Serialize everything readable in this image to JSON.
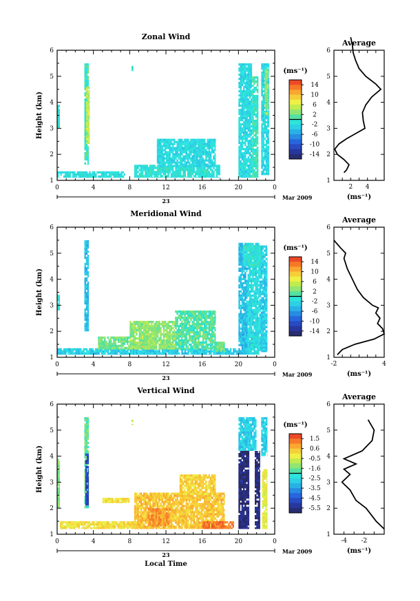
{
  "figure": {
    "month_label": "Mar 2009",
    "day_label": "23",
    "local_time_label": "Local Time",
    "average_title": "Average",
    "unit_label": "(ms⁻¹)",
    "y_label": "Height (km)",
    "time_ticks": [
      "0",
      "4",
      "8",
      "12",
      "16",
      "20",
      "0"
    ]
  },
  "chart_data": [
    {
      "type": "heatmap",
      "title": "Zonal Wind",
      "ylabel": "Height (km)",
      "ylim": [
        1,
        6
      ],
      "yticks": [
        1,
        2,
        3,
        4,
        5,
        6
      ],
      "xlim": [
        0,
        24
      ],
      "xlabel": "",
      "colorbar": {
        "unit": "(ms⁻¹)",
        "min": -16,
        "max": 16,
        "ticks": [
          "14",
          "10",
          "6",
          "2",
          "-2",
          "-6",
          "-10",
          "-14"
        ]
      },
      "patches": [
        {
          "t": [
            0,
            7.5
          ],
          "h": [
            1.1,
            1.35
          ],
          "v": -1.5
        },
        {
          "t": [
            0,
            0.3
          ],
          "h": [
            3.0,
            3.9
          ],
          "v": -1
        },
        {
          "t": [
            3.0,
            3.5
          ],
          "h": [
            1.6,
            5.5
          ],
          "v": 0
        },
        {
          "t": [
            3.2,
            3.6
          ],
          "h": [
            2.4,
            4.6
          ],
          "v": 5
        },
        {
          "t": [
            8.5,
            18.0
          ],
          "h": [
            1.1,
            1.6
          ],
          "v": -1
        },
        {
          "t": [
            11.0,
            17.5
          ],
          "h": [
            1.5,
            2.6
          ],
          "v": -2
        },
        {
          "t": [
            8.2,
            8.4
          ],
          "h": [
            5.2,
            5.4
          ],
          "v": 0
        },
        {
          "t": [
            20.0,
            21.5
          ],
          "h": [
            1.1,
            5.5
          ],
          "v": -2
        },
        {
          "t": [
            21.5,
            22.2
          ],
          "h": [
            1.1,
            5.0
          ],
          "v": 0
        },
        {
          "t": [
            22.5,
            23.4
          ],
          "h": [
            1.2,
            5.5
          ],
          "v": -2
        },
        {
          "t": [
            22.9,
            23.3
          ],
          "h": [
            3.5,
            5.3
          ],
          "v": 3
        }
      ],
      "average": {
        "xlim": [
          0,
          6
        ],
        "xticks": [
          2,
          4
        ],
        "x_unit": "(ms⁻¹)",
        "profile": [
          [
            1.2,
            1.3
          ],
          [
            1.5,
            1.4
          ],
          [
            1.8,
            1.6
          ],
          [
            1.2,
            1.8
          ],
          [
            0.4,
            2.0
          ],
          [
            0.1,
            2.2
          ],
          [
            0.6,
            2.4
          ],
          [
            1.5,
            2.6
          ],
          [
            2.6,
            2.8
          ],
          [
            3.7,
            3.0
          ],
          [
            3.5,
            3.3
          ],
          [
            3.4,
            3.6
          ],
          [
            3.8,
            3.9
          ],
          [
            4.5,
            4.2
          ],
          [
            5.6,
            4.5
          ],
          [
            5.0,
            4.7
          ],
          [
            3.8,
            5.0
          ],
          [
            3.0,
            5.3
          ],
          [
            2.6,
            5.6
          ],
          [
            2.3,
            5.9
          ],
          [
            2.2,
            6.2
          ],
          [
            2.0,
            6.5
          ]
        ]
      }
    },
    {
      "type": "heatmap",
      "title": "Meridional Wind",
      "ylabel": "Height (km)",
      "ylim": [
        1,
        6
      ],
      "yticks": [
        1,
        2,
        3,
        4,
        5,
        6
      ],
      "xlim": [
        0,
        24
      ],
      "xlabel": "",
      "colorbar": {
        "unit": "(ms⁻¹)",
        "min": -16,
        "max": 16,
        "ticks": [
          "14",
          "10",
          "6",
          "2",
          "-2",
          "-6",
          "-10",
          "-14"
        ]
      },
      "patches": [
        {
          "t": [
            0,
            20.0
          ],
          "h": [
            1.1,
            1.35
          ],
          "v": -3
        },
        {
          "t": [
            0,
            0.3
          ],
          "h": [
            2.8,
            3.4
          ],
          "v": -1
        },
        {
          "t": [
            3.0,
            3.5
          ],
          "h": [
            2.0,
            5.5
          ],
          "v": -4
        },
        {
          "t": [
            4.5,
            8.0
          ],
          "h": [
            1.3,
            1.8
          ],
          "v": 2
        },
        {
          "t": [
            9.0,
            11.0
          ],
          "h": [
            1.3,
            2.0
          ],
          "v": 7
        },
        {
          "t": [
            8.0,
            13.0
          ],
          "h": [
            1.3,
            2.4
          ],
          "v": 3
        },
        {
          "t": [
            13.0,
            17.5
          ],
          "h": [
            1.3,
            2.8
          ],
          "v": 1
        },
        {
          "t": [
            17.5,
            18.5
          ],
          "h": [
            1.2,
            1.6
          ],
          "v": 2
        },
        {
          "t": [
            20.0,
            21.0
          ],
          "h": [
            1.1,
            5.4
          ],
          "v": -4
        },
        {
          "t": [
            21.0,
            22.3
          ],
          "h": [
            1.1,
            5.4
          ],
          "v": -2
        },
        {
          "t": [
            22.3,
            23.2
          ],
          "h": [
            1.2,
            5.3
          ],
          "v": -3
        },
        {
          "t": [
            20.5,
            22.5
          ],
          "h": [
            4.5,
            5.3
          ],
          "v": -1
        }
      ],
      "average": {
        "xlim": [
          -2,
          4
        ],
        "xticks": [
          -2,
          4
        ],
        "x_unit": "(ms⁻¹)",
        "profile": [
          [
            -1.6,
            1.1
          ],
          [
            -1.0,
            1.3
          ],
          [
            0.5,
            1.5
          ],
          [
            2.8,
            1.7
          ],
          [
            4.0,
            1.9
          ],
          [
            3.8,
            2.1
          ],
          [
            3.2,
            2.3
          ],
          [
            3.5,
            2.5
          ],
          [
            3.0,
            2.7
          ],
          [
            3.3,
            2.9
          ],
          [
            2.6,
            3.0
          ],
          [
            1.5,
            3.3
          ],
          [
            0.8,
            3.6
          ],
          [
            0.2,
            4.0
          ],
          [
            -0.4,
            4.4
          ],
          [
            -0.8,
            4.8
          ],
          [
            -0.6,
            5.0
          ],
          [
            -1.2,
            5.2
          ],
          [
            -2.0,
            5.5
          ]
        ]
      }
    },
    {
      "type": "heatmap",
      "title": "Vertical Wind",
      "ylabel": "Height (km)",
      "ylim": [
        1,
        6
      ],
      "yticks": [
        1,
        2,
        3,
        4,
        5,
        6
      ],
      "xlim": [
        0,
        24
      ],
      "xlabel": "Local Time",
      "colorbar": {
        "unit": "(ms⁻¹)",
        "min": -6.4,
        "max": 2.4,
        "ticks": [
          "1.5",
          "0.6",
          "-0.5",
          "-1.6",
          "-2.5",
          "-3.5",
          "-4.5",
          "-5.5"
        ]
      },
      "patches": [
        {
          "t": [
            0.3,
            9.0
          ],
          "h": [
            1.2,
            1.5
          ],
          "v": 0.2
        },
        {
          "t": [
            0,
            0.3
          ],
          "h": [
            2.0,
            3.9
          ],
          "v": -1.3
        },
        {
          "t": [
            3.0,
            3.5
          ],
          "h": [
            2.0,
            5.5
          ],
          "v": -1.5
        },
        {
          "t": [
            3.1,
            3.5
          ],
          "h": [
            2.1,
            4.1
          ],
          "v": -5.0
        },
        {
          "t": [
            5.0,
            8.0
          ],
          "h": [
            2.2,
            2.4
          ],
          "v": 0.2
        },
        {
          "t": [
            8.5,
            18.5
          ],
          "h": [
            1.2,
            2.6
          ],
          "v": 0.6
        },
        {
          "t": [
            10.0,
            12.5
          ],
          "h": [
            1.3,
            2.0
          ],
          "v": 1.2
        },
        {
          "t": [
            13.5,
            17.5
          ],
          "h": [
            2.5,
            3.3
          ],
          "v": 0.4
        },
        {
          "t": [
            16.0,
            19.5
          ],
          "h": [
            1.2,
            1.5
          ],
          "v": 1.6
        },
        {
          "t": [
            8.2,
            8.4
          ],
          "h": [
            5.2,
            5.4
          ],
          "v": -1.0
        },
        {
          "t": [
            20.0,
            22.0
          ],
          "h": [
            4.2,
            5.5
          ],
          "v": -2.8
        },
        {
          "t": [
            20.0,
            21.2
          ],
          "h": [
            1.2,
            4.2
          ],
          "v": -6.0
        },
        {
          "t": [
            21.8,
            22.4
          ],
          "h": [
            1.2,
            4.2
          ],
          "v": -6.0
        },
        {
          "t": [
            22.5,
            23.2
          ],
          "h": [
            4.0,
            5.5
          ],
          "v": -2.8
        },
        {
          "t": [
            22.6,
            23.2
          ],
          "h": [
            1.2,
            3.5
          ],
          "v": -0.2
        }
      ],
      "average": {
        "xlim": [
          -5,
          0
        ],
        "xticks": [
          -4,
          -2
        ],
        "x_unit": "(ms⁻¹)",
        "profile": [
          [
            0,
            1.2
          ],
          [
            -0.8,
            1.5
          ],
          [
            -1.4,
            1.8
          ],
          [
            -1.8,
            2.0
          ],
          [
            -2.8,
            2.3
          ],
          [
            -3.4,
            2.7
          ],
          [
            -4.2,
            3.0
          ],
          [
            -3.4,
            3.3
          ],
          [
            -4.0,
            3.5
          ],
          [
            -2.8,
            3.7
          ],
          [
            -4.0,
            3.9
          ],
          [
            -2.2,
            4.2
          ],
          [
            -1.2,
            4.6
          ],
          [
            -1.0,
            5.0
          ],
          [
            -1.6,
            5.4
          ]
        ]
      }
    }
  ]
}
